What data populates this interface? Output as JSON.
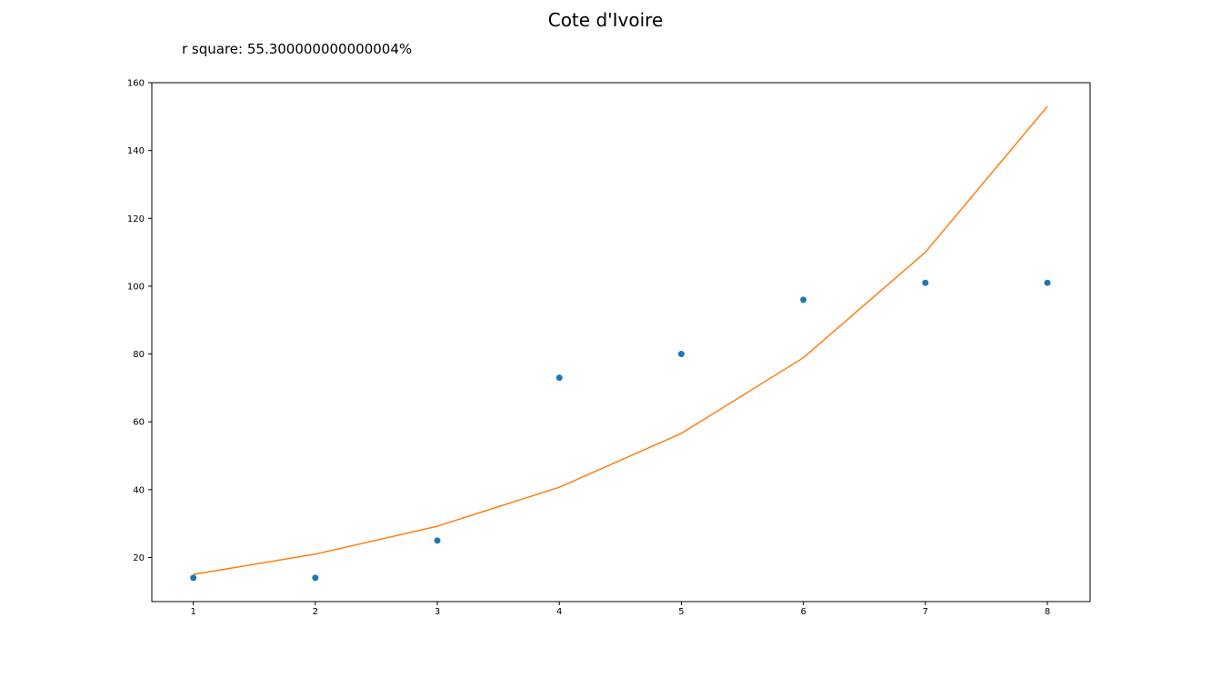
{
  "chart_data": {
    "type": "scatter",
    "title": "Cote d'Ivoire",
    "subtitle": "r square: 55.300000000000004%",
    "xlabel": "",
    "ylabel": "",
    "xlim": [
      0.66,
      8.35
    ],
    "ylim": [
      7,
      160
    ],
    "x_ticks": [
      1,
      2,
      3,
      4,
      5,
      6,
      7,
      8
    ],
    "y_ticks": [
      20,
      40,
      60,
      80,
      100,
      120,
      140,
      160
    ],
    "grid": false,
    "series": [
      {
        "kind": "scatter",
        "color": "#1f77b4",
        "x": [
          1,
          2,
          3,
          4,
          5,
          6,
          7,
          8
        ],
        "y": [
          14,
          14,
          25,
          73,
          80,
          96,
          101,
          101
        ]
      },
      {
        "kind": "line",
        "color": "#ff7f0e",
        "x": [
          1,
          2,
          3,
          4,
          5,
          6,
          7,
          8
        ],
        "y": [
          15,
          21,
          29.2,
          40.7,
          56.6,
          78.9,
          110,
          153
        ]
      }
    ]
  }
}
